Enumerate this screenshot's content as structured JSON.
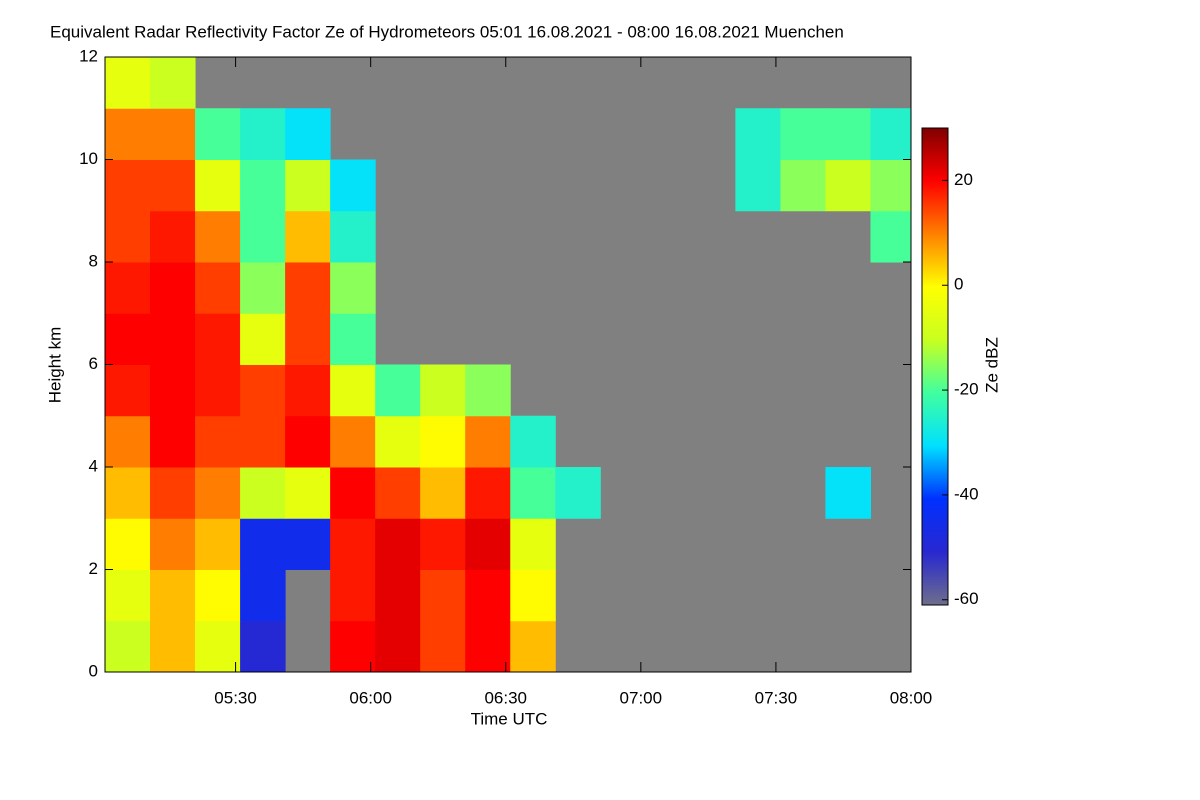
{
  "chart_data": {
    "type": "heatmap",
    "title": "Equivalent Radar Reflectivity Factor Ze of Hydrometeors   05:01 16.08.2021 - 08:00 16.08.2021 Muenchen",
    "x_label": "Time UTC",
    "y_label": "Height km",
    "colorbar_label": "Ze dBZ",
    "xlim": [
      301,
      480
    ],
    "xticks": [
      {
        "value": 330,
        "label": "05:30"
      },
      {
        "value": 360,
        "label": "06:00"
      },
      {
        "value": 390,
        "label": "06:30"
      },
      {
        "value": 420,
        "label": "07:00"
      },
      {
        "value": 450,
        "label": "07:30"
      },
      {
        "value": 480,
        "label": "08:00"
      }
    ],
    "ylim": [
      0,
      12
    ],
    "yticks": [
      0,
      2,
      4,
      6,
      8,
      10,
      12
    ],
    "clim": [
      -61,
      30
    ],
    "cticks": [
      -60,
      -40,
      -20,
      0,
      20
    ],
    "colormap": [
      "#6e6e8c",
      "#2828d0",
      "#0030ff",
      "#00e0ff",
      "#40ffa0",
      "#c8ff20",
      "#ffff00",
      "#ff8000",
      "#ff0000",
      "#800000"
    ],
    "background": "#808080",
    "x_bins": [
      301,
      311,
      321,
      331,
      341,
      351,
      361,
      371,
      381,
      391,
      401,
      411,
      421,
      431,
      441,
      451,
      461,
      471,
      480
    ],
    "y_bins": [
      0,
      1,
      2,
      3,
      4,
      5,
      6,
      7,
      8,
      9,
      10,
      11,
      12
    ],
    "z": [
      [
        -10,
        5,
        -5,
        -50,
        null,
        20,
        22,
        15,
        20,
        5,
        null,
        null,
        null,
        null,
        null,
        null,
        null,
        null
      ],
      [
        -5,
        5,
        0,
        -45,
        null,
        18,
        22,
        15,
        20,
        0,
        null,
        null,
        null,
        null,
        null,
        null,
        null,
        null
      ],
      [
        0,
        10,
        5,
        -45,
        -45,
        18,
        22,
        18,
        22,
        -5,
        null,
        null,
        null,
        null,
        null,
        null,
        null,
        null
      ],
      [
        5,
        15,
        10,
        -10,
        -5,
        20,
        15,
        5,
        18,
        -20,
        -25,
        null,
        null,
        null,
        null,
        null,
        -30,
        null
      ],
      [
        10,
        20,
        15,
        15,
        20,
        10,
        -5,
        0,
        10,
        -25,
        null,
        null,
        null,
        null,
        null,
        null,
        null,
        null
      ],
      [
        18,
        20,
        18,
        15,
        18,
        -5,
        -20,
        -10,
        -15,
        null,
        null,
        null,
        null,
        null,
        null,
        null,
        null,
        null
      ],
      [
        20,
        20,
        18,
        -5,
        15,
        -20,
        null,
        null,
        null,
        null,
        null,
        null,
        null,
        null,
        null,
        null,
        null,
        null
      ],
      [
        18,
        20,
        15,
        -15,
        15,
        -15,
        null,
        null,
        null,
        null,
        null,
        null,
        null,
        null,
        null,
        null,
        null,
        null
      ],
      [
        15,
        18,
        10,
        -20,
        5,
        -25,
        null,
        null,
        null,
        null,
        null,
        null,
        null,
        null,
        null,
        null,
        null,
        -20
      ],
      [
        15,
        15,
        -5,
        -20,
        -10,
        -30,
        null,
        null,
        null,
        null,
        null,
        null,
        null,
        null,
        -25,
        -15,
        -10,
        -15
      ],
      [
        10,
        10,
        -20,
        -25,
        -30,
        null,
        null,
        null,
        null,
        null,
        null,
        null,
        null,
        null,
        -25,
        -20,
        -20,
        -25
      ],
      [
        -5,
        -10,
        null,
        null,
        null,
        null,
        null,
        null,
        null,
        null,
        null,
        null,
        null,
        null,
        null,
        null,
        null,
        null
      ]
    ]
  }
}
